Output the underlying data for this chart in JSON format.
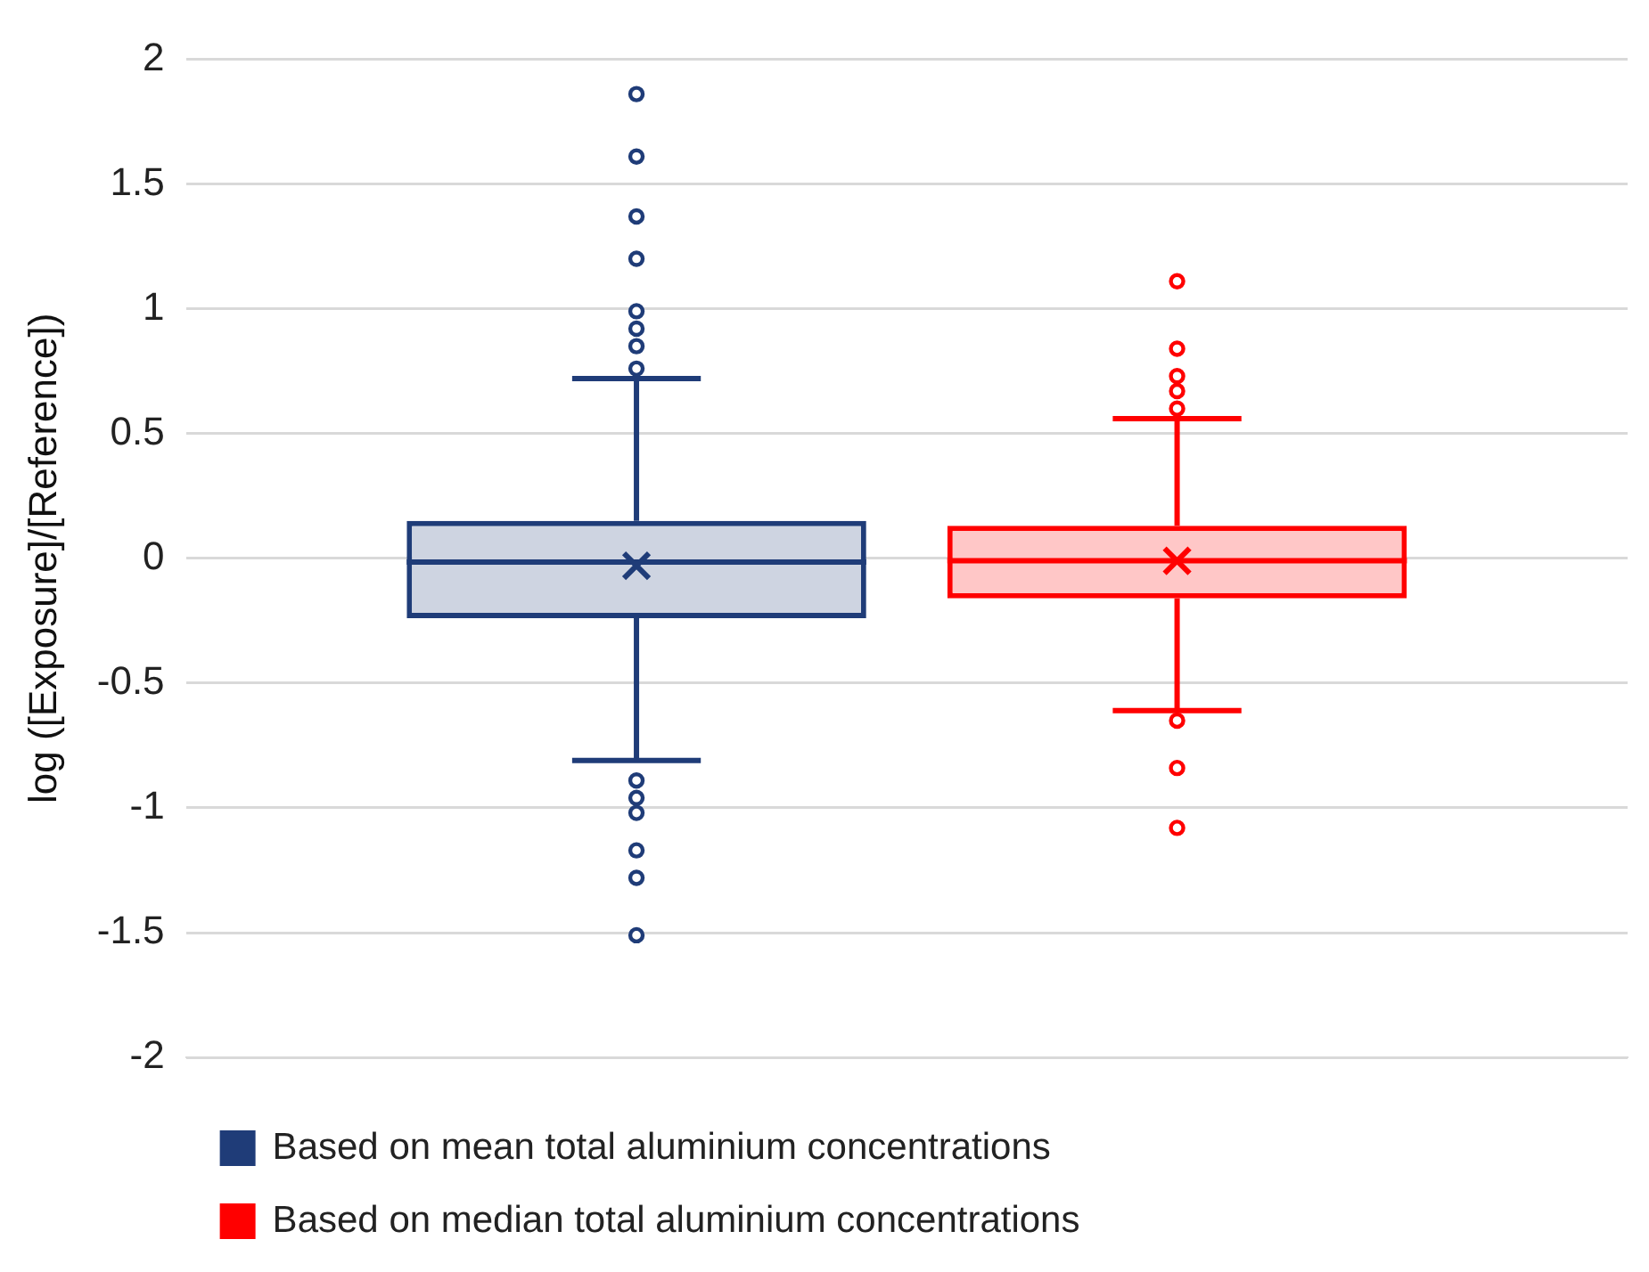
{
  "chart_data": {
    "type": "box",
    "ylabel": "log ([Exposure]/[Reference])",
    "categories": [
      null
    ],
    "ylim": [
      -2,
      2
    ],
    "yticks": [
      -2,
      -1.5,
      -1,
      -0.5,
      0,
      0.5,
      1,
      1.5,
      2
    ],
    "grid": "y",
    "legend": "bottom",
    "series": [
      {
        "name": "Based on mean total aluminium concentrations",
        "color": "#1f3c78",
        "boxes": [
          {
            "low": -0.81,
            "q1": -0.24,
            "median": -0.015,
            "q3": 0.15,
            "high": 0.72,
            "mean": -0.03,
            "outliers": [
              1.86,
              1.61,
              1.37,
              1.2,
              0.99,
              0.92,
              0.85,
              0.76,
              -0.89,
              -0.96,
              -1.02,
              -1.17,
              -1.28,
              -1.51
            ]
          }
        ]
      },
      {
        "name": "Based on median total aluminium concentrations",
        "color": "#ff0000",
        "boxes": [
          {
            "low": -0.61,
            "q1": -0.16,
            "median": -0.01,
            "q3": 0.13,
            "high": 0.56,
            "mean": -0.01,
            "outliers": [
              1.11,
              0.84,
              0.73,
              0.67,
              0.6,
              -0.65,
              -0.84,
              -1.08
            ]
          }
        ]
      }
    ]
  }
}
